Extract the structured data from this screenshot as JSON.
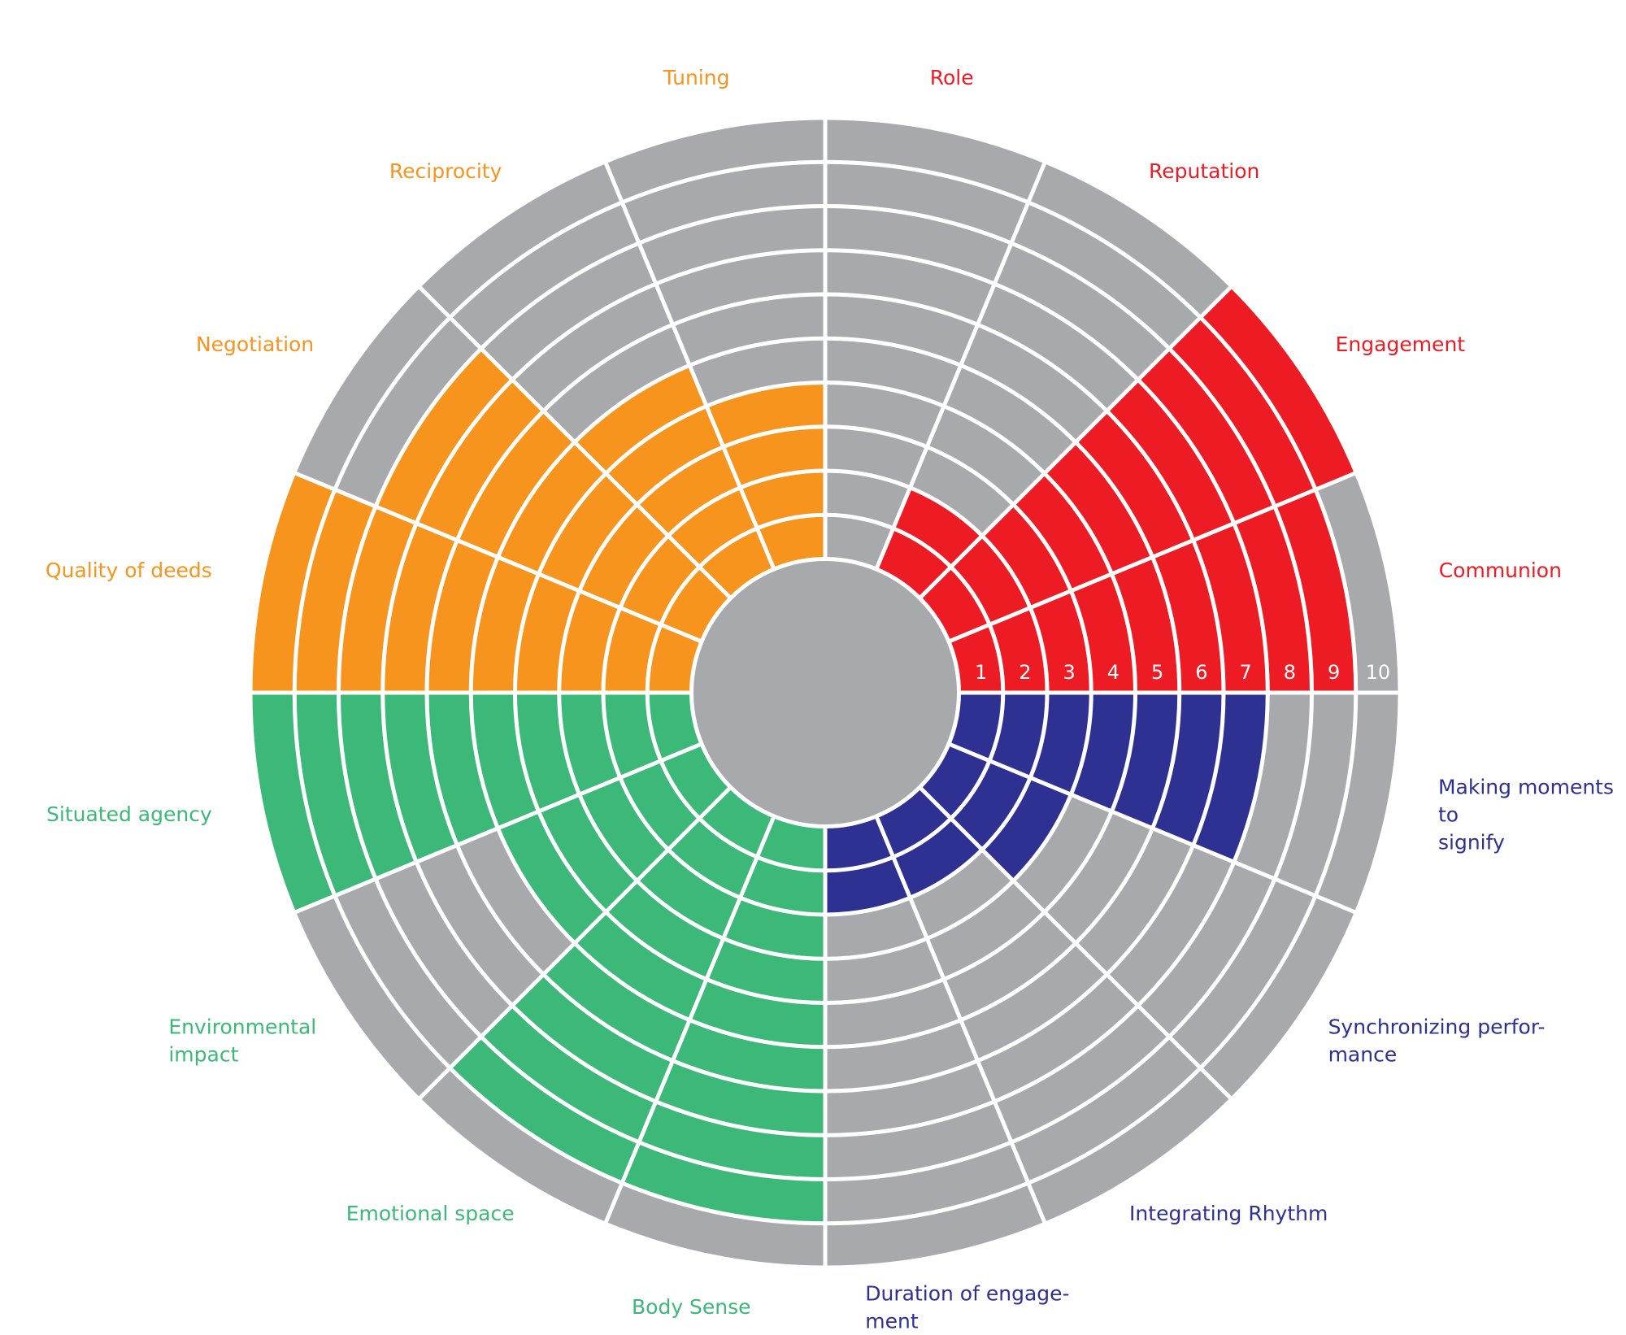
{
  "chart_data": {
    "type": "radial_bar",
    "categories": [
      "Communion",
      "Engagement",
      "Reputation",
      "Role",
      "Tuning",
      "Reciprocity",
      "Negotiation",
      "Quality of deeds",
      "Situated agency",
      "Environmental\nimpact",
      "Emotional space",
      "Body Sense",
      "Duration of engage-\nment",
      "Integrating Rhythm",
      "Synchronizing perfor-\nmance",
      "Making moments to\nsignify"
    ],
    "values": [
      9,
      10,
      2,
      0,
      4,
      5,
      8,
      10,
      10,
      5,
      9,
      9,
      2,
      2,
      3,
      7
    ],
    "colors": [
      "#ed1c24",
      "#ed1c24",
      "#ed1c24",
      "#ed1c24",
      "#f7941d",
      "#f7941d",
      "#f7941d",
      "#f7941d",
      "#3cb878",
      "#3cb878",
      "#3cb878",
      "#3cb878",
      "#2e3192",
      "#2e3192",
      "#2e3192",
      "#2e3192"
    ],
    "empty_color": "#a7a9ac",
    "rlim": [
      0,
      10
    ],
    "rticks": [
      1,
      2,
      3,
      4,
      5,
      6,
      7,
      8,
      9,
      10
    ]
  }
}
